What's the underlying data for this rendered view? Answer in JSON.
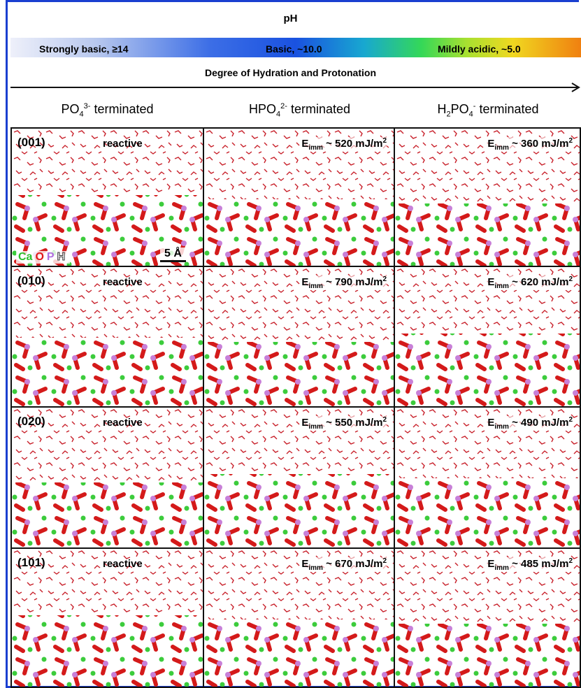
{
  "header": {
    "title": "pH",
    "scale_labels": [
      "Strongly basic, ≥14",
      "Basic, ~10.0",
      "Mildly acidic, ~5.0"
    ],
    "axis_label": "Degree of Hydration and Protonation"
  },
  "columns": [
    [
      {
        "text": "PO"
      },
      {
        "sub": "4"
      },
      {
        "sup": "3-"
      },
      {
        "text": " terminated"
      }
    ],
    [
      {
        "text": "HPO"
      },
      {
        "sub": "4"
      },
      {
        "sup": "2-"
      },
      {
        "text": " terminated"
      }
    ],
    [
      {
        "text": "H"
      },
      {
        "sub": "2"
      },
      {
        "text": "PO"
      },
      {
        "sub": "4"
      },
      {
        "sup": "-"
      },
      {
        "text": " terminated"
      }
    ]
  ],
  "rows": [
    {
      "label": "(001)",
      "cells": [
        "reactive",
        {
          "symbol": "E",
          "subscript": "imm",
          "text": " ~ 520 mJ/m",
          "superscript": "2"
        },
        {
          "symbol": "E",
          "subscript": "imm",
          "text": " ~ 360 mJ/m",
          "superscript": "2"
        }
      ]
    },
    {
      "label": "(010)",
      "cells": [
        "reactive",
        {
          "symbol": "E",
          "subscript": "imm",
          "text": " ~ 790 mJ/m",
          "superscript": "2"
        },
        {
          "symbol": "E",
          "subscript": "imm",
          "text": " ~ 620 mJ/m",
          "superscript": "2"
        }
      ]
    },
    {
      "label": "(020)",
      "cells": [
        "reactive",
        {
          "symbol": "E",
          "subscript": "imm",
          "text": " ~ 550 mJ/m",
          "superscript": "2"
        },
        {
          "symbol": "E",
          "subscript": "imm",
          "text": " ~ 490 mJ/m",
          "superscript": "2"
        }
      ]
    },
    {
      "label": "(101)",
      "cells": [
        "reactive",
        {
          "symbol": "E",
          "subscript": "imm",
          "text": " ~ 670 mJ/m",
          "superscript": "2"
        },
        {
          "symbol": "E",
          "subscript": "imm",
          "text": " ~ 485 mJ/m",
          "superscript": "2"
        }
      ]
    }
  ],
  "legend": [
    "Ca",
    "O",
    "P",
    "H"
  ],
  "scale_bar": "5 Å"
}
